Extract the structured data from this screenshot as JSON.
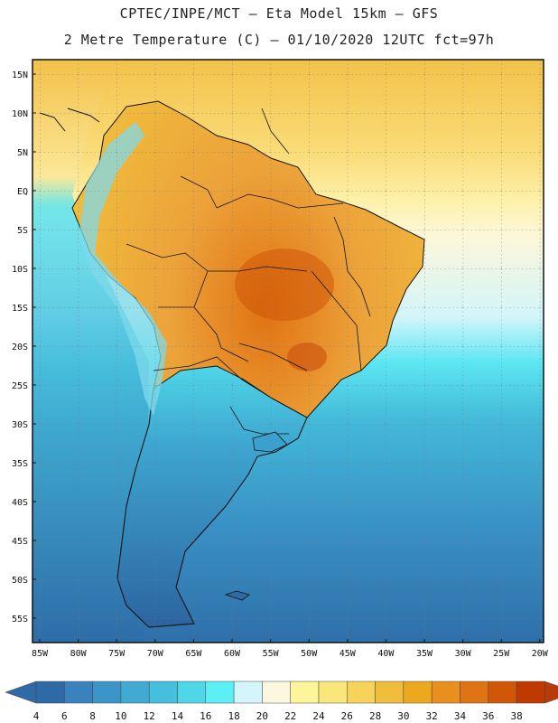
{
  "header": {
    "line1": "CPTEC/INPE/MCT –  Eta Model 15km – GFS",
    "line2": "2 Metre Temperature (C) – 01/10/2020 12UTC fct=97h"
  },
  "axes": {
    "lat_labels": [
      "15N",
      "10N",
      "5N",
      "EQ",
      "5S",
      "10S",
      "15S",
      "20S",
      "25S",
      "30S",
      "35S",
      "40S",
      "45S",
      "50S",
      "55S"
    ],
    "lon_labels": [
      "85W",
      "80W",
      "75W",
      "70W",
      "65W",
      "60W",
      "55W",
      "50W",
      "45W",
      "40W",
      "35W",
      "30W",
      "25W",
      "20W"
    ]
  },
  "colorbar": {
    "labels": [
      "4",
      "6",
      "8",
      "10",
      "12",
      "14",
      "16",
      "18",
      "20",
      "22",
      "24",
      "26",
      "28",
      "30",
      "32",
      "34",
      "36",
      "38"
    ],
    "colors": [
      "#2e6aa6",
      "#3a82bd",
      "#3b96c7",
      "#40aad2",
      "#46bfdc",
      "#4fd6e8",
      "#5cf0f5",
      "#d4f6fb",
      "#fcf8df",
      "#fdf59a",
      "#fae77a",
      "#f6d45a",
      "#f0be3c",
      "#eca91e",
      "#e98f1d",
      "#e07313",
      "#d05608",
      "#c03a00"
    ],
    "left_arrow_color": "#2e6aa6",
    "right_arrow_color": "#b83a08"
  }
}
